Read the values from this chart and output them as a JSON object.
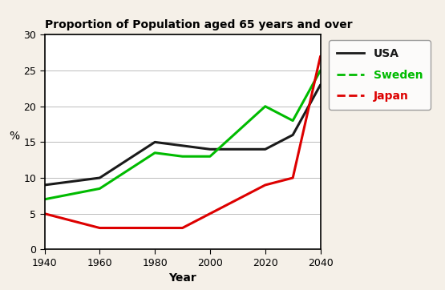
{
  "title": "Proportion of Population aged 65 years and over",
  "xlabel": "Year",
  "ylabel": "%",
  "years": [
    1940,
    1960,
    1980,
    1990,
    2000,
    2020,
    2030,
    2040
  ],
  "usa": [
    9,
    10,
    15,
    14.5,
    14,
    14,
    16,
    23
  ],
  "sweden": [
    7,
    8.5,
    13.5,
    13,
    13,
    20,
    18,
    25
  ],
  "japan": [
    5,
    3,
    3,
    3,
    5,
    9,
    10,
    27
  ],
  "usa_color": "#1a1a1a",
  "sweden_color": "#00bb00",
  "japan_color": "#dd0000",
  "ylim": [
    0,
    30
  ],
  "xlim": [
    1940,
    2040
  ],
  "xticks": [
    1940,
    1960,
    1980,
    2000,
    2020,
    2040
  ],
  "yticks": [
    0,
    5,
    10,
    15,
    20,
    25,
    30
  ],
  "plot_bg": "#ffffff",
  "outer_bg": "#f5f0e8",
  "linewidth": 2.2,
  "legend_labels": [
    "USA",
    "Sweden",
    "Japan"
  ],
  "legend_colors": [
    "#1a1a1a",
    "#00bb00",
    "#dd0000"
  ]
}
